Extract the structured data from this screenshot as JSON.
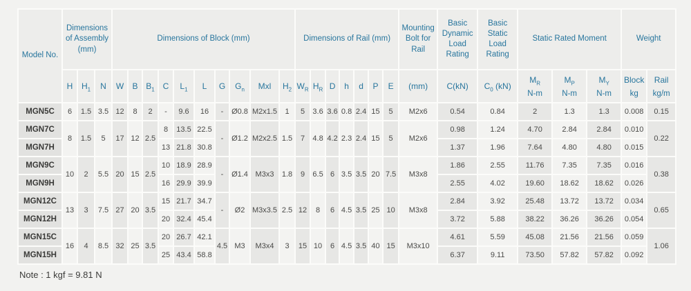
{
  "note": "Note : 1 kgf = 9.81 N",
  "colors": {
    "header_text": "#27759d",
    "header_bg": "#ededeb",
    "stripe_light": "#f3f3f1",
    "stripe_dark": "#e7e7e5",
    "model_bg": "#e2e2e0",
    "page_bg": "#f2f2f0"
  },
  "table": {
    "header_groups": [
      {
        "key": "model-no",
        "label": "Model No.",
        "span": 1,
        "rowspan": 2
      },
      {
        "key": "dims-assembly",
        "label": "Dimensions of Assembly (mm)",
        "span": 3
      },
      {
        "key": "dims-block",
        "label": "Dimensions of Block (mm)",
        "span": 10
      },
      {
        "key": "dims-rail",
        "label": "Dimensions of Rail (mm)",
        "span": 7
      },
      {
        "key": "mounting-bolt",
        "label": "Mounting Bolt for Rail",
        "span": 1
      },
      {
        "key": "dynamic-load",
        "label": "Basic Dynamic Load Rating",
        "span": 1
      },
      {
        "key": "static-load",
        "label": "Basic Static Load Rating",
        "span": 1
      },
      {
        "key": "static-moment",
        "label": "Static Rated Moment",
        "span": 3
      },
      {
        "key": "weight",
        "label": "Weight",
        "span": 2
      }
    ],
    "subheaders": [
      {
        "key": "H",
        "b": "H"
      },
      {
        "key": "H1",
        "b": "H",
        "s": "1"
      },
      {
        "key": "N",
        "b": "N"
      },
      {
        "key": "W",
        "b": "W"
      },
      {
        "key": "B",
        "b": "B"
      },
      {
        "key": "B1",
        "b": "B",
        "s": "1"
      },
      {
        "key": "C",
        "b": "C"
      },
      {
        "key": "L1",
        "b": "L",
        "s": "1"
      },
      {
        "key": "L",
        "b": "L"
      },
      {
        "key": "G",
        "b": "G"
      },
      {
        "key": "Gn",
        "b": "G",
        "s": "n"
      },
      {
        "key": "Mxl",
        "b": "Mxl"
      },
      {
        "key": "H2",
        "b": "H",
        "s": "2"
      },
      {
        "key": "WR",
        "b": "W",
        "s": "R"
      },
      {
        "key": "HR",
        "b": "H",
        "s": "R"
      },
      {
        "key": "D",
        "b": "D"
      },
      {
        "key": "h",
        "b": "h"
      },
      {
        "key": "d",
        "b": "d"
      },
      {
        "key": "P",
        "b": "P"
      },
      {
        "key": "E",
        "b": "E"
      },
      {
        "key": "bolt-size",
        "b": "(mm)"
      },
      {
        "key": "C-kN",
        "b": "C(kN)"
      },
      {
        "key": "C0-kN",
        "b": "C",
        "s": "0",
        "after": " (kN)"
      },
      {
        "key": "MR",
        "b": "M",
        "s": "R",
        "unit": "N-m"
      },
      {
        "key": "MP",
        "b": "M",
        "s": "P",
        "unit": "N-m"
      },
      {
        "key": "MY",
        "b": "M",
        "s": "Y",
        "unit": "N-m"
      },
      {
        "key": "weight-block",
        "b": "Block",
        "unit": "kg"
      },
      {
        "key": "weight-rail",
        "b": "Rail",
        "unit": "kg/m"
      }
    ],
    "rows": [
      {
        "model": "MGN5C",
        "cells": [
          "6",
          "1.5",
          "3.5",
          "12",
          "8",
          "2",
          "-",
          "9.6",
          "16",
          "-",
          "Ø0.8",
          "M2x1.5",
          "1",
          "5",
          "3.6",
          "3.6",
          "0.8",
          "2.4",
          "15",
          "5",
          "M2x6",
          "0.54",
          "0.84",
          "2",
          "1.3",
          "1.3",
          "0.008",
          "0.15"
        ]
      },
      {
        "model": "MGN7C",
        "cells": [
          {
            "v": "8",
            "rs": 2
          },
          {
            "v": "1.5",
            "rs": 2
          },
          {
            "v": "5",
            "rs": 2
          },
          {
            "v": "17",
            "rs": 2
          },
          {
            "v": "12",
            "rs": 2
          },
          {
            "v": "2.5",
            "rs": 2
          },
          "8",
          "13.5",
          "22.5",
          {
            "v": "-",
            "rs": 2
          },
          {
            "v": "Ø1.2",
            "rs": 2
          },
          {
            "v": "M2x2.5",
            "rs": 2
          },
          {
            "v": "1.5",
            "rs": 2
          },
          {
            "v": "7",
            "rs": 2
          },
          {
            "v": "4.8",
            "rs": 2
          },
          {
            "v": "4.2",
            "rs": 2
          },
          {
            "v": "2.3",
            "rs": 2
          },
          {
            "v": "2.4",
            "rs": 2
          },
          {
            "v": "15",
            "rs": 2
          },
          {
            "v": "5",
            "rs": 2
          },
          {
            "v": "M2x6",
            "rs": 2
          },
          "0.98",
          "1.24",
          "4.70",
          "2.84",
          "2.84",
          "0.010",
          {
            "v": "0.22",
            "rs": 2
          }
        ]
      },
      {
        "model": "MGN7H",
        "cells": [
          null,
          null,
          null,
          null,
          null,
          null,
          "13",
          "21.8",
          "30.8",
          null,
          null,
          null,
          null,
          null,
          null,
          null,
          null,
          null,
          null,
          null,
          null,
          "1.37",
          "1.96",
          "7.64",
          "4.80",
          "4.80",
          "0.015",
          null
        ]
      },
      {
        "model": "MGN9C",
        "cells": [
          {
            "v": "10",
            "rs": 2
          },
          {
            "v": "2",
            "rs": 2
          },
          {
            "v": "5.5",
            "rs": 2
          },
          {
            "v": "20",
            "rs": 2
          },
          {
            "v": "15",
            "rs": 2
          },
          {
            "v": "2.5",
            "rs": 2
          },
          "10",
          "18.9",
          "28.9",
          {
            "v": "-",
            "rs": 2
          },
          {
            "v": "Ø1.4",
            "rs": 2
          },
          {
            "v": "M3x3",
            "rs": 2
          },
          {
            "v": "1.8",
            "rs": 2
          },
          {
            "v": "9",
            "rs": 2
          },
          {
            "v": "6.5",
            "rs": 2
          },
          {
            "v": "6",
            "rs": 2
          },
          {
            "v": "3.5",
            "rs": 2
          },
          {
            "v": "3.5",
            "rs": 2
          },
          {
            "v": "20",
            "rs": 2
          },
          {
            "v": "7.5",
            "rs": 2
          },
          {
            "v": "M3x8",
            "rs": 2
          },
          "1.86",
          "2.55",
          "11.76",
          "7.35",
          "7.35",
          "0.016",
          {
            "v": "0.38",
            "rs": 2
          }
        ]
      },
      {
        "model": "MGN9H",
        "cells": [
          null,
          null,
          null,
          null,
          null,
          null,
          "16",
          "29.9",
          "39.9",
          null,
          null,
          null,
          null,
          null,
          null,
          null,
          null,
          null,
          null,
          null,
          null,
          "2.55",
          "4.02",
          "19.60",
          "18.62",
          "18.62",
          "0.026",
          null
        ]
      },
      {
        "model": "MGN12C",
        "cells": [
          {
            "v": "13",
            "rs": 2
          },
          {
            "v": "3",
            "rs": 2
          },
          {
            "v": "7.5",
            "rs": 2
          },
          {
            "v": "27",
            "rs": 2
          },
          {
            "v": "20",
            "rs": 2
          },
          {
            "v": "3.5",
            "rs": 2
          },
          "15",
          "21.7",
          "34.7",
          {
            "v": "-",
            "rs": 2
          },
          {
            "v": "Ø2",
            "rs": 2
          },
          {
            "v": "M3x3.5",
            "rs": 2
          },
          {
            "v": "2.5",
            "rs": 2
          },
          {
            "v": "12",
            "rs": 2
          },
          {
            "v": "8",
            "rs": 2
          },
          {
            "v": "6",
            "rs": 2
          },
          {
            "v": "4.5",
            "rs": 2
          },
          {
            "v": "3.5",
            "rs": 2
          },
          {
            "v": "25",
            "rs": 2
          },
          {
            "v": "10",
            "rs": 2
          },
          {
            "v": "M3x8",
            "rs": 2
          },
          "2.84",
          "3.92",
          "25.48",
          "13.72",
          "13.72",
          "0.034",
          {
            "v": "0.65",
            "rs": 2
          }
        ]
      },
      {
        "model": "MGN12H",
        "cells": [
          null,
          null,
          null,
          null,
          null,
          null,
          "20",
          "32.4",
          "45.4",
          null,
          null,
          null,
          null,
          null,
          null,
          null,
          null,
          null,
          null,
          null,
          null,
          "3.72",
          "5.88",
          "38.22",
          "36.26",
          "36.26",
          "0.054",
          null
        ]
      },
      {
        "model": "MGN15C",
        "cells": [
          {
            "v": "16",
            "rs": 2
          },
          {
            "v": "4",
            "rs": 2
          },
          {
            "v": "8.5",
            "rs": 2
          },
          {
            "v": "32",
            "rs": 2
          },
          {
            "v": "25",
            "rs": 2
          },
          {
            "v": "3.5",
            "rs": 2
          },
          "20",
          "26.7",
          "42.1",
          {
            "v": "4.5",
            "rs": 2
          },
          {
            "v": "M3",
            "rs": 2
          },
          {
            "v": "M3x4",
            "rs": 2
          },
          {
            "v": "3",
            "rs": 2
          },
          {
            "v": "15",
            "rs": 2
          },
          {
            "v": "10",
            "rs": 2
          },
          {
            "v": "6",
            "rs": 2
          },
          {
            "v": "4.5",
            "rs": 2
          },
          {
            "v": "3.5",
            "rs": 2
          },
          {
            "v": "40",
            "rs": 2
          },
          {
            "v": "15",
            "rs": 2
          },
          {
            "v": "M3x10",
            "rs": 2
          },
          "4.61",
          "5.59",
          "45.08",
          "21.56",
          "21.56",
          "0.059",
          {
            "v": "1.06",
            "rs": 2
          }
        ]
      },
      {
        "model": "MGN15H",
        "cells": [
          null,
          null,
          null,
          null,
          null,
          null,
          "25",
          "43.4",
          "58.8",
          null,
          null,
          null,
          null,
          null,
          null,
          null,
          null,
          null,
          null,
          null,
          null,
          "6.37",
          "9.11",
          "73.50",
          "57.82",
          "57.82",
          "0.092",
          null
        ]
      }
    ]
  }
}
